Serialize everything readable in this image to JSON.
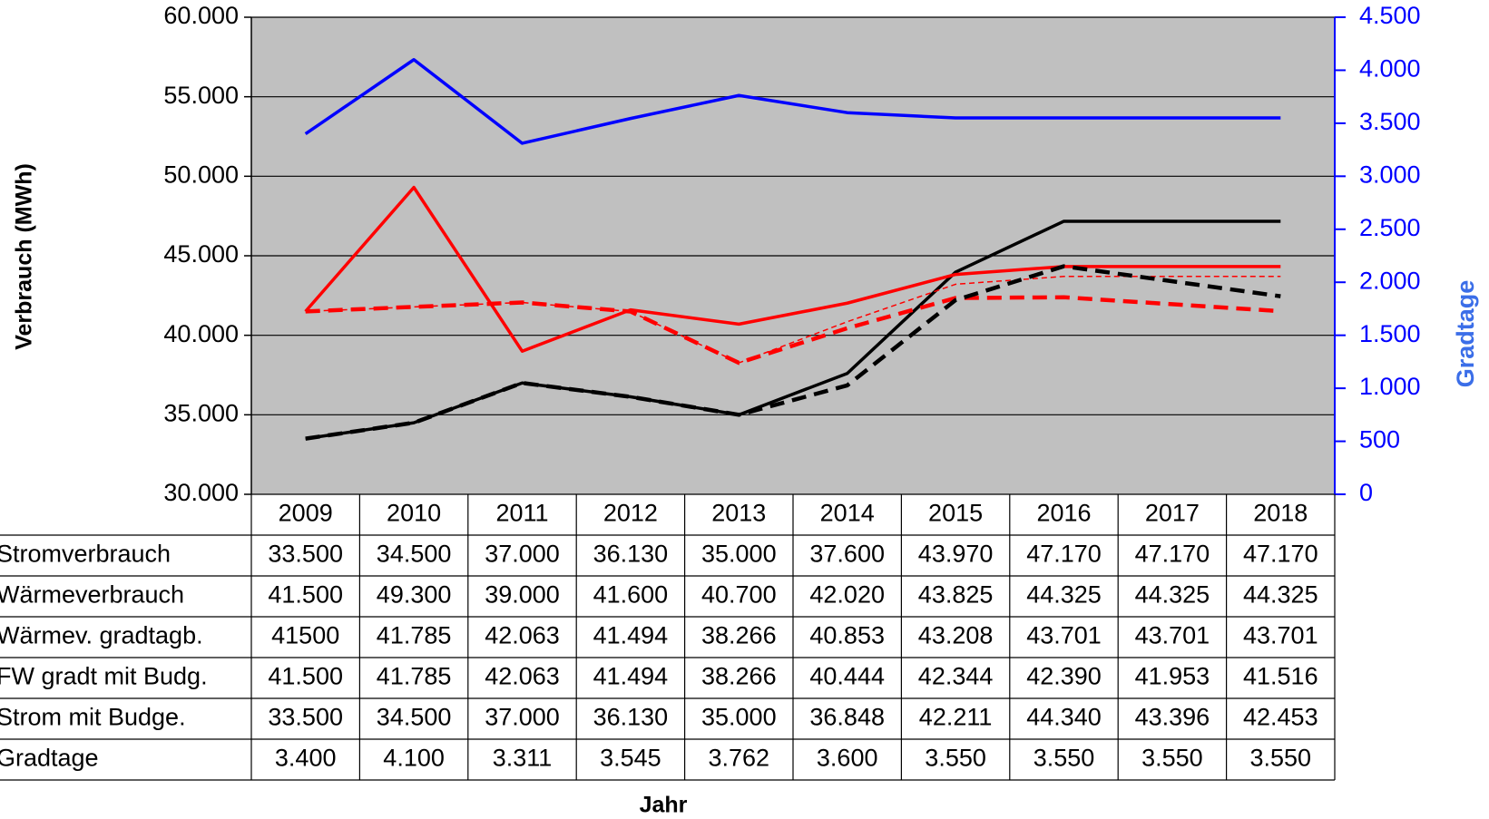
{
  "chart_data": {
    "type": "line",
    "ylabel": "Verbrauch (MWh)",
    "y2label": "Gradtage",
    "xlabel": "Jahr",
    "categories": [
      "2009",
      "2010",
      "2011",
      "2012",
      "2013",
      "2014",
      "2015",
      "2016",
      "2017",
      "2018"
    ],
    "ylim": [
      30000,
      60000
    ],
    "yticks": [
      {
        "value": 30000,
        "label": "30.000"
      },
      {
        "value": 35000,
        "label": "35.000"
      },
      {
        "value": 40000,
        "label": "40.000"
      },
      {
        "value": 45000,
        "label": "45.000"
      },
      {
        "value": 50000,
        "label": "50.000"
      },
      {
        "value": 55000,
        "label": "55.000"
      },
      {
        "value": 60000,
        "label": "60.000"
      }
    ],
    "y2lim": [
      0,
      4500
    ],
    "y2ticks": [
      0,
      500,
      {
        "value": 1000,
        "label": "1.000"
      },
      {
        "value": 1500,
        "label": "1.500"
      },
      {
        "value": 2000,
        "label": "2.000"
      },
      {
        "value": 2500,
        "label": "2.500"
      },
      {
        "value": 3000,
        "label": "3.000"
      },
      {
        "value": 3500,
        "label": "3.500"
      },
      {
        "value": 4000,
        "label": "4.000"
      },
      {
        "value": 4500,
        "label": "4.500"
      }
    ],
    "grid": true,
    "series": [
      {
        "name": "Stromverbrauch",
        "color": "#000000",
        "line_style": "solid",
        "values": [
          33500,
          34500,
          37000,
          36130,
          35000,
          37600,
          43970,
          47170,
          47170,
          47170
        ],
        "value_labels": [
          "33.500",
          "34.500",
          "37.000",
          "36.130",
          "35.000",
          "37.600",
          "43.970",
          "47.170",
          "47.170",
          "47.170"
        ]
      },
      {
        "name": "Wärmeverbrauch",
        "color": "#ff0000",
        "line_style": "solid",
        "values": [
          41500,
          49300,
          39000,
          41600,
          40700,
          42020,
          43825,
          44325,
          44325,
          44325
        ],
        "value_labels": [
          "41.500",
          "49.300",
          "39.000",
          "41.600",
          "40.700",
          "42.020",
          "43.825",
          "44.325",
          "44.325",
          "44.325"
        ]
      },
      {
        "name": "Wärmev. gradtagb.",
        "color": "#ff0000",
        "line_style": "thin-dashed",
        "values": [
          41500,
          41785,
          42063,
          41494,
          38266,
          40853,
          43208,
          43701,
          43701,
          43701
        ],
        "value_labels": [
          "41500",
          "41.785",
          "42.063",
          "41.494",
          "38.266",
          "40.853",
          "43.208",
          "43.701",
          "43.701",
          "43.701"
        ]
      },
      {
        "name": "FW gradt mit Budg.",
        "color": "#ff0000",
        "line_style": "dashed",
        "values": [
          41500,
          41785,
          42063,
          41494,
          38266,
          40444,
          42344,
          42390,
          41953,
          41516
        ],
        "value_labels": [
          "41.500",
          "41.785",
          "42.063",
          "41.494",
          "38.266",
          "40.444",
          "42.344",
          "42.390",
          "41.953",
          "41.516"
        ]
      },
      {
        "name": "Strom mit Budge.",
        "color": "#000000",
        "line_style": "dashed",
        "values": [
          33500,
          34500,
          37000,
          36130,
          35000,
          36848,
          42211,
          44340,
          43396,
          42453
        ],
        "value_labels": [
          "33.500",
          "34.500",
          "37.000",
          "36.130",
          "35.000",
          "36.848",
          "42.211",
          "44.340",
          "43.396",
          "42.453"
        ]
      },
      {
        "name": "Gradtage",
        "color": "#0000ff",
        "line_style": "solid",
        "axis": "y2",
        "values": [
          3400,
          4100,
          3311,
          3545,
          3762,
          3600,
          3550,
          3550,
          3550,
          3550
        ],
        "value_labels": [
          "3.400",
          "4.100",
          "3.311",
          "3.545",
          "3.762",
          "3.600",
          "3.550",
          "3.550",
          "3.550",
          "3.550"
        ]
      }
    ]
  }
}
